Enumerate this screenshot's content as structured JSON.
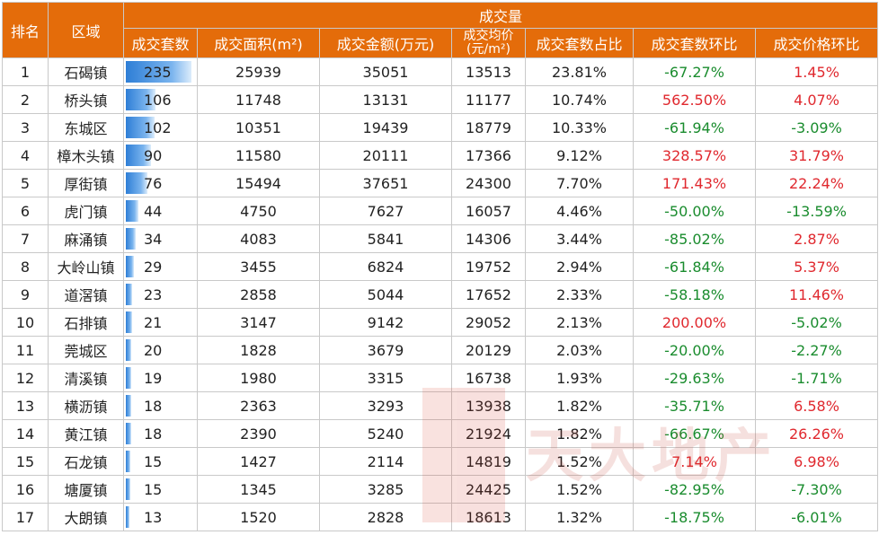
{
  "header": {
    "rank": "排名",
    "district": "区域",
    "group": "成交量",
    "units": "成交套数",
    "area": "成交面积(m²)",
    "amount": "成交金额(万元)",
    "avg_price": "成交均价(元/m²)",
    "share": "成交套数占比",
    "units_mom": "成交套数环比",
    "price_mom": "成交价格环比"
  },
  "colors": {
    "header_bg": "#e46c0a",
    "positive": "#e0282e",
    "negative": "#1a8c2e",
    "bar": "#2e7ed6"
  },
  "max_units": 235,
  "rows": [
    {
      "rank": "1",
      "district": "石碣镇",
      "units": 235,
      "area": "25939",
      "amount": "35051",
      "avg": "13513",
      "share": "23.81%",
      "units_mom": "-67.27%",
      "price_mom": "1.45%"
    },
    {
      "rank": "2",
      "district": "桥头镇",
      "units": 106,
      "area": "11748",
      "amount": "13131",
      "avg": "11177",
      "share": "10.74%",
      "units_mom": "562.50%",
      "price_mom": "4.07%"
    },
    {
      "rank": "3",
      "district": "东城区",
      "units": 102,
      "area": "10351",
      "amount": "19439",
      "avg": "18779",
      "share": "10.33%",
      "units_mom": "-61.94%",
      "price_mom": "-3.09%"
    },
    {
      "rank": "4",
      "district": "樟木头镇",
      "units": 90,
      "area": "11580",
      "amount": "20111",
      "avg": "17366",
      "share": "9.12%",
      "units_mom": "328.57%",
      "price_mom": "31.79%"
    },
    {
      "rank": "5",
      "district": "厚街镇",
      "units": 76,
      "area": "15494",
      "amount": "37651",
      "avg": "24300",
      "share": "7.70%",
      "units_mom": "171.43%",
      "price_mom": "22.24%"
    },
    {
      "rank": "6",
      "district": "虎门镇",
      "units": 44,
      "area": "4750",
      "amount": "7627",
      "avg": "16057",
      "share": "4.46%",
      "units_mom": "-50.00%",
      "price_mom": "-13.59%"
    },
    {
      "rank": "7",
      "district": "麻涌镇",
      "units": 34,
      "area": "4083",
      "amount": "5841",
      "avg": "14306",
      "share": "3.44%",
      "units_mom": "-85.02%",
      "price_mom": "2.87%"
    },
    {
      "rank": "8",
      "district": "大岭山镇",
      "units": 29,
      "area": "3455",
      "amount": "6824",
      "avg": "19752",
      "share": "2.94%",
      "units_mom": "-61.84%",
      "price_mom": "5.37%"
    },
    {
      "rank": "9",
      "district": "道滘镇",
      "units": 23,
      "area": "2858",
      "amount": "5044",
      "avg": "17652",
      "share": "2.33%",
      "units_mom": "-58.18%",
      "price_mom": "11.46%"
    },
    {
      "rank": "10",
      "district": "石排镇",
      "units": 21,
      "area": "3147",
      "amount": "9142",
      "avg": "29052",
      "share": "2.13%",
      "units_mom": "200.00%",
      "price_mom": "-5.02%"
    },
    {
      "rank": "11",
      "district": "莞城区",
      "units": 20,
      "area": "1828",
      "amount": "3679",
      "avg": "20129",
      "share": "2.03%",
      "units_mom": "-20.00%",
      "price_mom": "-2.27%"
    },
    {
      "rank": "12",
      "district": "清溪镇",
      "units": 19,
      "area": "1980",
      "amount": "3315",
      "avg": "16738",
      "share": "1.93%",
      "units_mom": "-29.63%",
      "price_mom": "-1.71%"
    },
    {
      "rank": "13",
      "district": "横沥镇",
      "units": 18,
      "area": "2363",
      "amount": "3293",
      "avg": "13938",
      "share": "1.82%",
      "units_mom": "-35.71%",
      "price_mom": "6.58%"
    },
    {
      "rank": "14",
      "district": "黄江镇",
      "units": 18,
      "area": "2390",
      "amount": "5240",
      "avg": "21924",
      "share": "1.82%",
      "units_mom": "-66.67%",
      "price_mom": "26.26%"
    },
    {
      "rank": "15",
      "district": "石龙镇",
      "units": 15,
      "area": "1427",
      "amount": "2114",
      "avg": "14819",
      "share": "1.52%",
      "units_mom": "7.14%",
      "price_mom": "6.98%"
    },
    {
      "rank": "16",
      "district": "塘厦镇",
      "units": 15,
      "area": "1345",
      "amount": "3285",
      "avg": "24425",
      "share": "1.52%",
      "units_mom": "-82.95%",
      "price_mom": "-7.30%"
    },
    {
      "rank": "17",
      "district": "大朗镇",
      "units": 13,
      "area": "1520",
      "amount": "2828",
      "avg": "18613",
      "share": "1.32%",
      "units_mom": "-18.75%",
      "price_mom": "-6.01%"
    }
  ],
  "watermark": {
    "text": "天大地产"
  }
}
